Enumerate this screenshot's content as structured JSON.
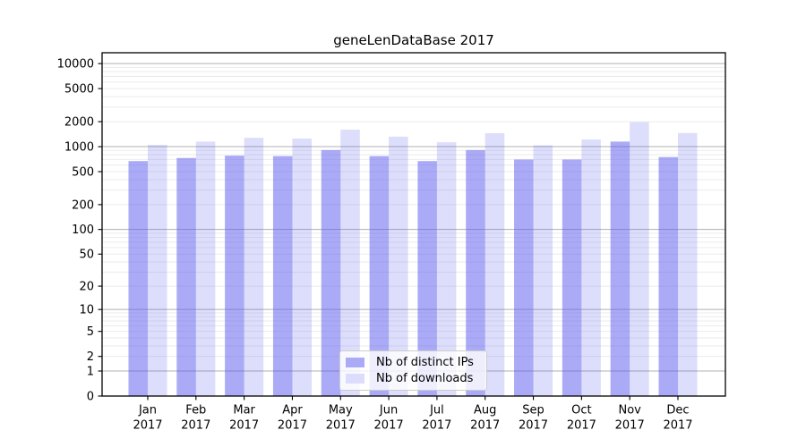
{
  "chart_data": {
    "type": "bar",
    "title": "geneLenDataBase 2017",
    "categories": [
      "Jan",
      "Feb",
      "Mar",
      "Apr",
      "May",
      "Jun",
      "Jul",
      "Aug",
      "Sep",
      "Oct",
      "Nov",
      "Dec"
    ],
    "category_year": "2017",
    "series": [
      {
        "name": "Nb of distinct IPs",
        "color": "rgba(85,85,238,0.5)",
        "legend_color": "#aaaaf6",
        "values": [
          670,
          730,
          780,
          770,
          910,
          770,
          670,
          910,
          700,
          700,
          1150,
          750
        ]
      },
      {
        "name": "Nb of downloads",
        "color": "rgba(85,85,238,0.2)",
        "legend_color": "#dcdcfc",
        "values": [
          1050,
          1150,
          1280,
          1250,
          1600,
          1320,
          1130,
          1450,
          1040,
          1220,
          1970,
          1460
        ]
      }
    ],
    "y_axis": {
      "scale": "log1p",
      "min": 0,
      "max_effective": 13500,
      "ticks": [
        0,
        1,
        2,
        5,
        10,
        20,
        50,
        100,
        200,
        500,
        1000,
        2000,
        5000,
        10000
      ],
      "major_gridlines": [
        1,
        10,
        100,
        1000,
        10000
      ]
    },
    "x_axis": {
      "tick_label_line1": [
        "Jan",
        "Feb",
        "Mar",
        "Apr",
        "May",
        "Jun",
        "Jul",
        "Aug",
        "Sep",
        "Oct",
        "Nov",
        "Dec"
      ],
      "tick_label_line2": "2017"
    },
    "grid": true,
    "legend_position": "lower center",
    "colors": {
      "major_grid": "#b0b0b0",
      "minor_grid": "#ebebeb",
      "spine": "#000000",
      "text": "#000000"
    }
  }
}
